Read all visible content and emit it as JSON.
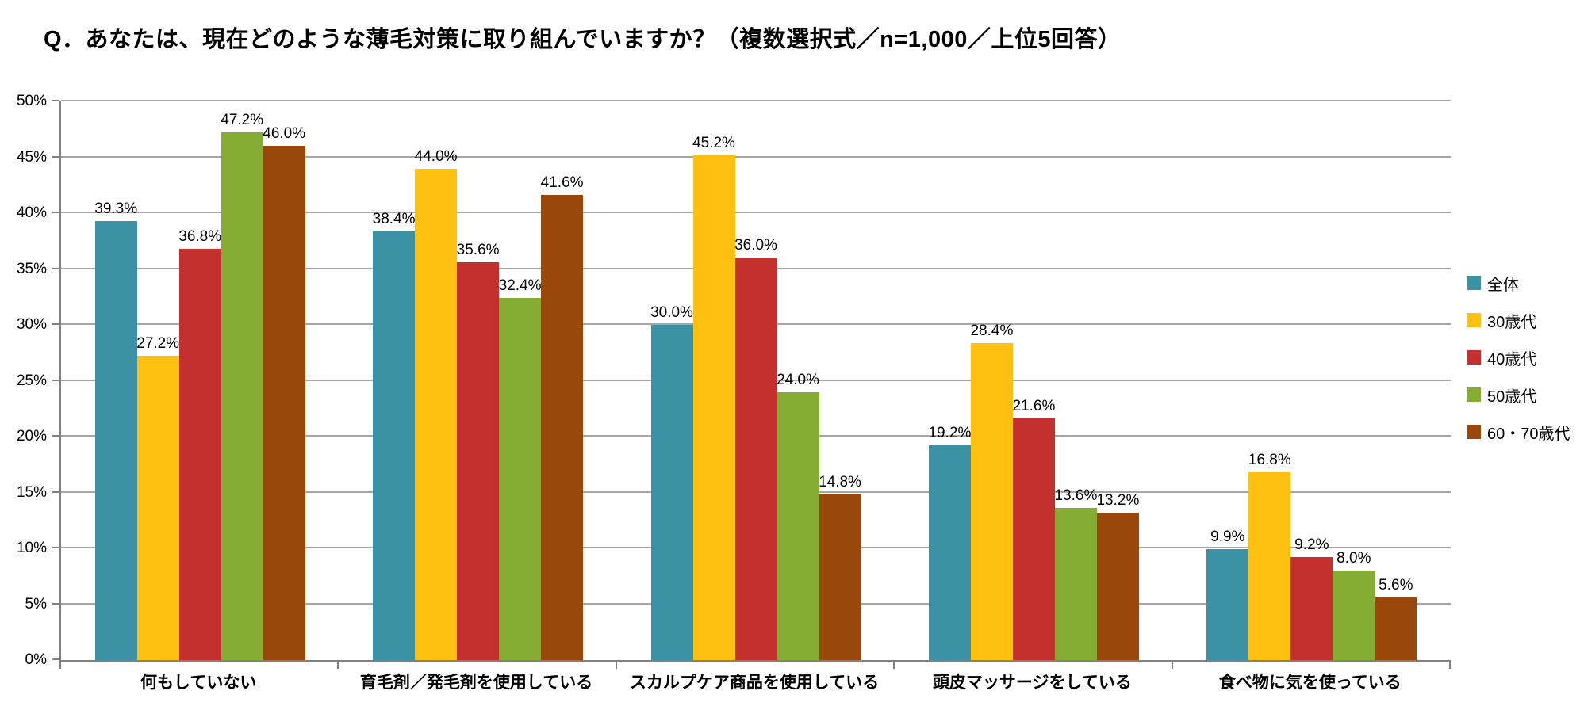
{
  "title": "Q．あなたは、現在どのような薄毛対策に取り組んでいますか？（複数選択式／n=1,000／上位5回答）",
  "chart_data": {
    "type": "bar",
    "title": "Q．あなたは、現在どのような薄毛対策に取り組んでいますか？（複数選択式／n=1,000／上位5回答）",
    "categories": [
      "何もしていない",
      "育毛剤／発毛剤を使用している",
      "スカルプケア商品を使用している",
      "頭皮マッサージをしている",
      "食べ物に気を使っている"
    ],
    "series": [
      {
        "name": "全体",
        "color": "#3B92A5",
        "values": [
          39.3,
          38.4,
          30.0,
          19.2,
          9.9
        ]
      },
      {
        "name": "30歳代",
        "color": "#FFC011",
        "values": [
          27.2,
          44.0,
          45.2,
          28.4,
          16.8
        ]
      },
      {
        "name": "40歳代",
        "color": "#C4302E",
        "values": [
          36.8,
          35.6,
          36.0,
          21.6,
          9.2
        ]
      },
      {
        "name": "50歳代",
        "color": "#85AC33",
        "values": [
          47.2,
          32.4,
          24.0,
          13.6,
          8.0
        ]
      },
      {
        "name": "60・70歳代",
        "color": "#99470A",
        "values": [
          46.0,
          41.6,
          14.8,
          13.2,
          5.6
        ]
      }
    ],
    "xlabel": "",
    "ylabel": "",
    "y_axis": {
      "min": 0,
      "max": 50,
      "step": 5
    },
    "y_tick_labels": [
      "0%",
      "5%",
      "10%",
      "15%",
      "20%",
      "25%",
      "30%",
      "35%",
      "40%",
      "45%",
      "50%"
    ],
    "data_label_suffix": "%",
    "grid": true,
    "legend_position": "right",
    "axis_color": "#808080",
    "gridline_color": "#A6A6A6"
  }
}
